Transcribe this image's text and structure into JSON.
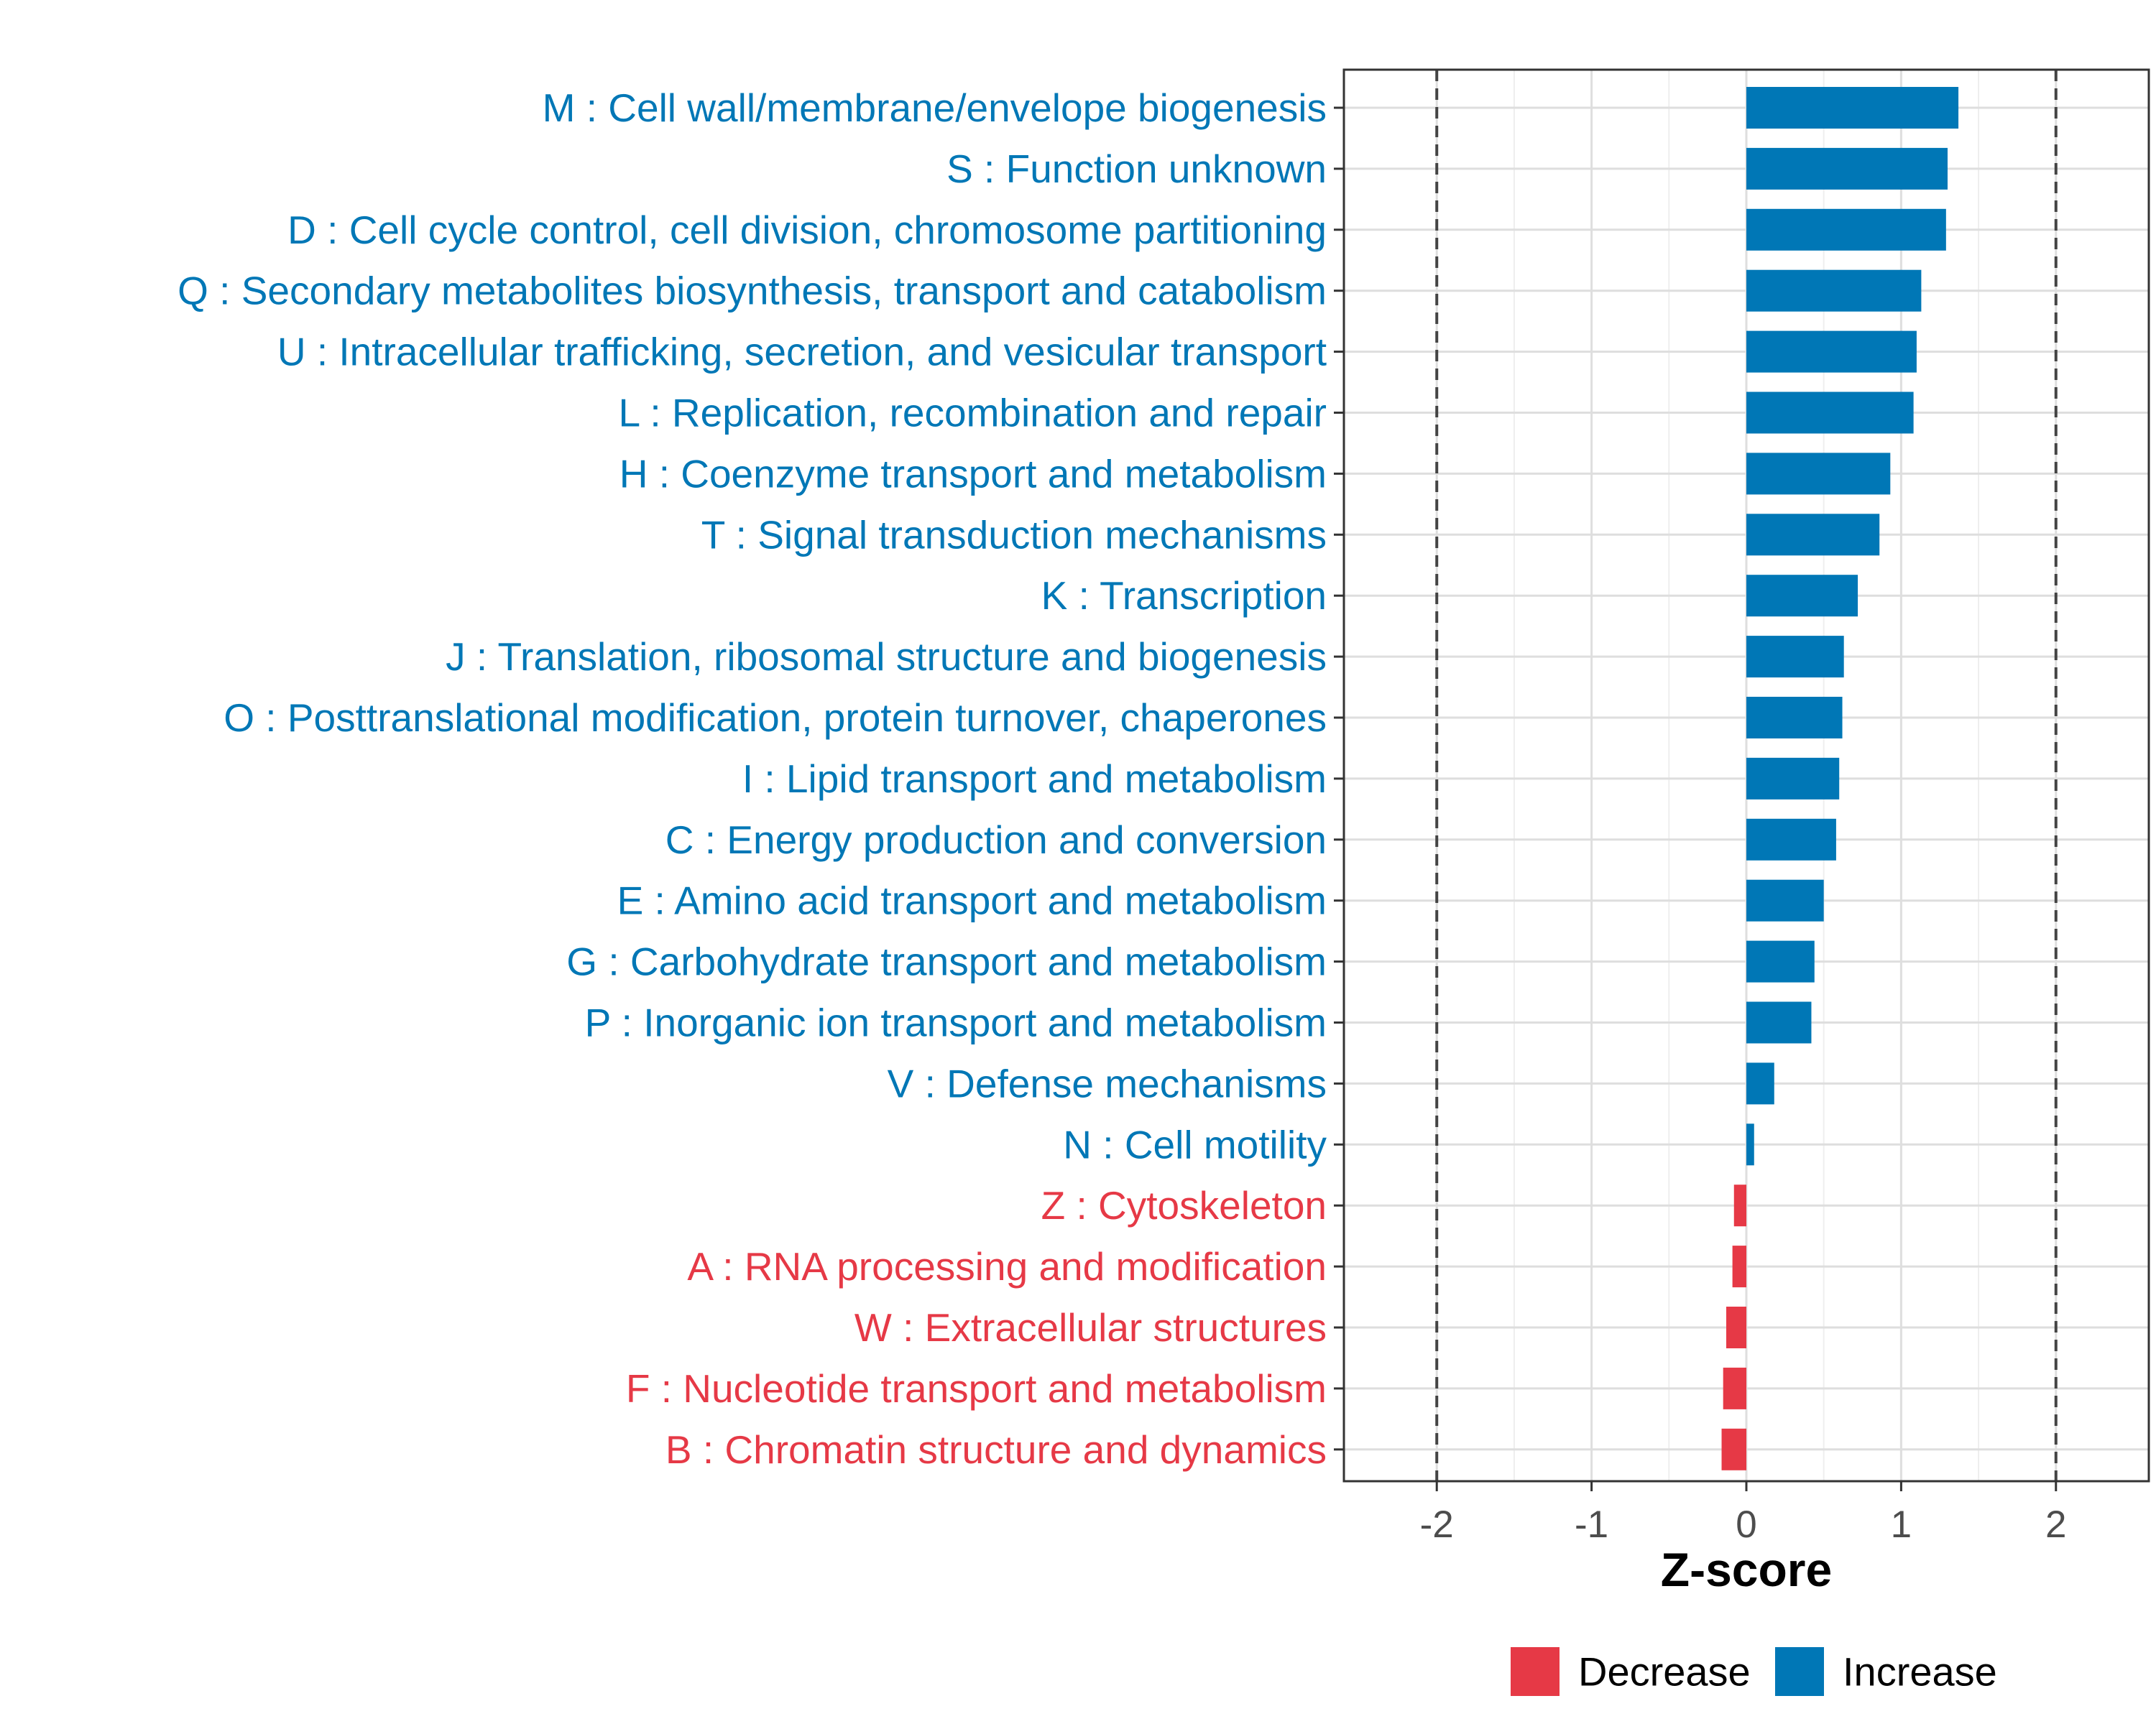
{
  "chart_data": {
    "type": "bar",
    "orientation": "horizontal",
    "xlabel": "Z-score",
    "xlim": [
      -2.6,
      2.6
    ],
    "xticks": [
      -2,
      -1,
      0,
      1,
      2
    ],
    "xtick_labels": [
      "-2",
      "-1",
      "0",
      "1",
      "2"
    ],
    "reference_lines": [
      -2,
      2
    ],
    "grid": true,
    "legend_position": "bottom",
    "legend": [
      {
        "label": "Decrease",
        "color": "#E63946"
      },
      {
        "label": "Increase",
        "color": "#0077B6"
      }
    ],
    "categories": [
      "M : Cell wall/membrane/envelope biogenesis",
      "S : Function unknown",
      "D : Cell cycle control, cell division, chromosome partitioning",
      "Q : Secondary metabolites biosynthesis, transport and catabolism",
      "U : Intracellular trafficking, secretion, and vesicular transport",
      "L : Replication, recombination and repair",
      "H : Coenzyme transport and metabolism",
      "T : Signal transduction mechanisms",
      "K : Transcription",
      "J : Translation, ribosomal structure and biogenesis",
      "O : Posttranslational modification, protein turnover, chaperones",
      "I : Lipid transport and metabolism",
      "C : Energy production and conversion",
      "E : Amino acid transport and metabolism",
      "G : Carbohydrate transport and metabolism",
      "P : Inorganic ion transport and metabolism",
      "V : Defense mechanisms",
      "N : Cell motility",
      "Z : Cytoskeleton",
      "A : RNA processing and modification",
      "W : Extracellular structures",
      "F : Nucleotide transport and metabolism",
      "B : Chromatin structure and dynamics"
    ],
    "values": [
      1.37,
      1.3,
      1.29,
      1.13,
      1.1,
      1.08,
      0.93,
      0.86,
      0.72,
      0.63,
      0.62,
      0.6,
      0.58,
      0.5,
      0.44,
      0.42,
      0.18,
      0.05,
      -0.08,
      -0.09,
      -0.13,
      -0.15,
      -0.16
    ],
    "direction": [
      "Increase",
      "Increase",
      "Increase",
      "Increase",
      "Increase",
      "Increase",
      "Increase",
      "Increase",
      "Increase",
      "Increase",
      "Increase",
      "Increase",
      "Increase",
      "Increase",
      "Increase",
      "Increase",
      "Increase",
      "Increase",
      "Decrease",
      "Decrease",
      "Decrease",
      "Decrease",
      "Decrease"
    ]
  }
}
